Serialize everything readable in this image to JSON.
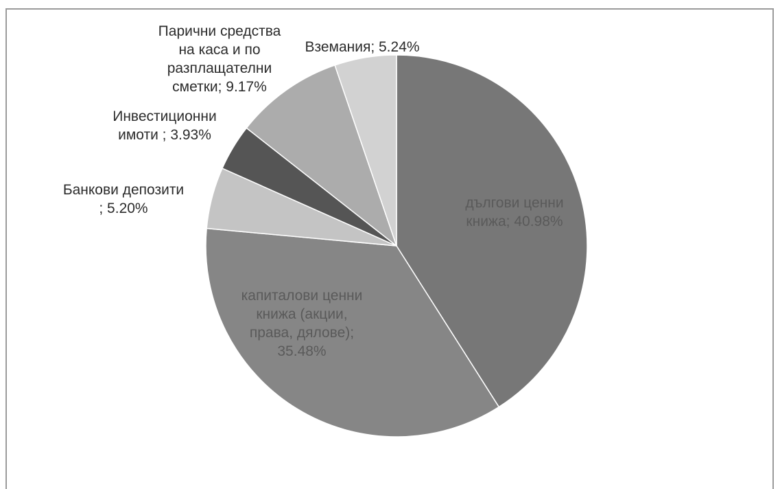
{
  "chart_data": {
    "type": "pie",
    "title": "",
    "slices": [
      {
        "name": "дългови ценни книжа",
        "value": 40.98,
        "label_lines": [
          "дългови ценни",
          "книжа; 40.98%"
        ],
        "color": "#777777"
      },
      {
        "name": "капиталови ценни книжа (акции, права, дялове)",
        "value": 35.48,
        "label_lines": [
          "капиталови ценни",
          "книжа (акции,",
          "права, дялове);",
          "35.48%"
        ],
        "color": "#868686"
      },
      {
        "name": "Банкови депозити",
        "value": 5.2,
        "label_lines": [
          "Банкови депозити",
          "; 5.20%"
        ],
        "color": "#c4c4c4"
      },
      {
        "name": "Инвестиционни имоти",
        "value": 3.93,
        "label_lines": [
          "Инвестиционни",
          "имоти ; 3.93%"
        ],
        "color": "#555555"
      },
      {
        "name": "Парични средства на каса и по разплащателни сметки",
        "value": 9.17,
        "label_lines": [
          "Парични средства",
          "на каса и по",
          "разплащателни",
          "сметки; 9.17%"
        ],
        "color": "#acacac"
      },
      {
        "name": "Вземания",
        "value": 5.24,
        "label_lines": [
          "Вземания; 5.24%"
        ],
        "color": "#d2d2d2"
      }
    ],
    "start": "12 o'clock",
    "direction": "clockwise",
    "legend": "none"
  }
}
